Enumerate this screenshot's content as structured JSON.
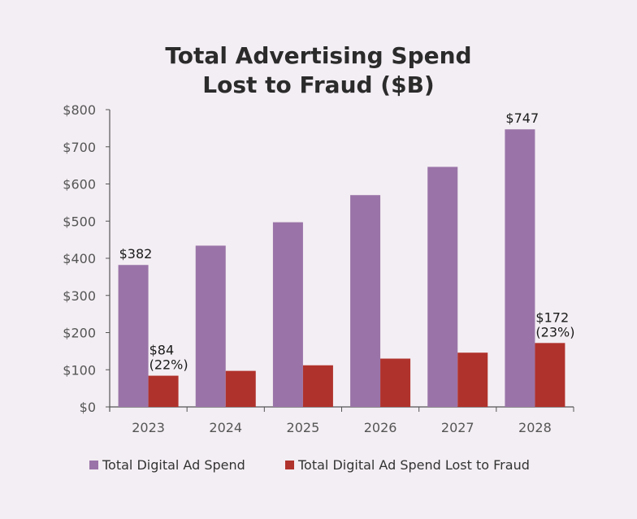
{
  "chart_data": {
    "type": "bar",
    "title": "Total Advertising Spend",
    "subtitle": "Lost to Fraud ($B)",
    "categories": [
      "2023",
      "2024",
      "2025",
      "2026",
      "2027",
      "2028"
    ],
    "series": [
      {
        "name": "Total Digital Ad Spend",
        "color": "#9a74a8",
        "values": [
          382,
          434,
          497,
          570,
          646,
          747
        ]
      },
      {
        "name": "Total Digital Ad Spend Lost to Fraud",
        "color": "#b0322c",
        "values": [
          84,
          97,
          112,
          130,
          146,
          172
        ]
      }
    ],
    "y_ticks": [
      "$0",
      "$100",
      "$200",
      "$300",
      "$400",
      "$500",
      "$600",
      "$700",
      "$800"
    ],
    "ylim": [
      0,
      800
    ],
    "grid": false,
    "legend": "bottom",
    "annotations": [
      {
        "series": 0,
        "category": "2023",
        "lines": [
          "$382"
        ]
      },
      {
        "series": 1,
        "category": "2023",
        "lines": [
          "$84",
          "(22%)"
        ]
      },
      {
        "series": 0,
        "category": "2028",
        "lines": [
          "$747"
        ]
      },
      {
        "series": 1,
        "category": "2028",
        "lines": [
          "$172",
          "(23%)"
        ]
      }
    ]
  }
}
